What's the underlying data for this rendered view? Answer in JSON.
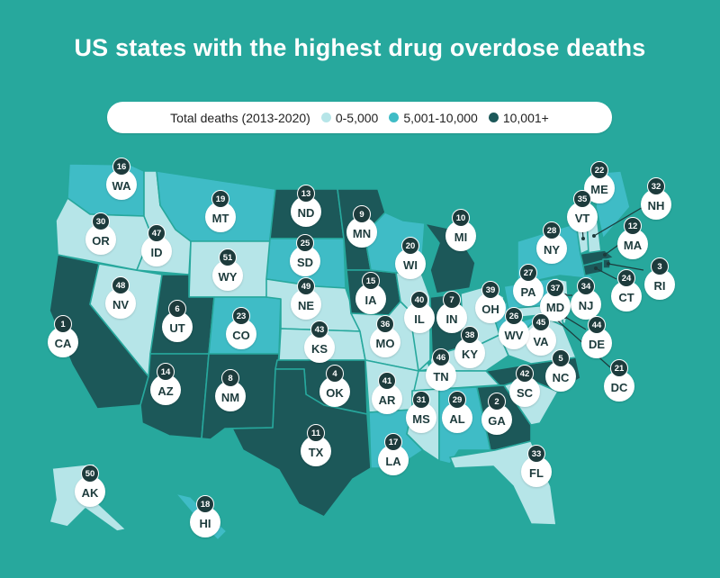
{
  "title": "US states with the highest drug overdose deaths",
  "legend": {
    "label": "Total deaths (2013-2020)",
    "items": [
      {
        "label": "0-5,000",
        "color": "#b6e5e8"
      },
      {
        "label": "5,001-10,000",
        "color": "#3fbcc6"
      },
      {
        "label": "10,001+",
        "color": "#1c5859"
      }
    ]
  },
  "colors": {
    "background": "#27a89d",
    "low": "#b6e5e8",
    "mid": "#3fbcc6",
    "high": "#1c5859",
    "rank_badge": "#1d3b3c"
  },
  "states": [
    {
      "abbr": "WA",
      "rank": "16",
      "category": "mid"
    },
    {
      "abbr": "OR",
      "rank": "30",
      "category": "low"
    },
    {
      "abbr": "CA",
      "rank": "1",
      "category": "high"
    },
    {
      "abbr": "NV",
      "rank": "48",
      "category": "low"
    },
    {
      "abbr": "ID",
      "rank": "47",
      "category": "low"
    },
    {
      "abbr": "MT",
      "rank": "19",
      "category": "mid"
    },
    {
      "abbr": "WY",
      "rank": "51",
      "category": "low"
    },
    {
      "abbr": "UT",
      "rank": "6",
      "category": "high"
    },
    {
      "abbr": "AZ",
      "rank": "14",
      "category": "high"
    },
    {
      "abbr": "CO",
      "rank": "23",
      "category": "mid"
    },
    {
      "abbr": "NM",
      "rank": "8",
      "category": "high"
    },
    {
      "abbr": "ND",
      "rank": "13",
      "category": "high"
    },
    {
      "abbr": "SD",
      "rank": "25",
      "category": "mid"
    },
    {
      "abbr": "NE",
      "rank": "49",
      "category": "low"
    },
    {
      "abbr": "KS",
      "rank": "43",
      "category": "low"
    },
    {
      "abbr": "OK",
      "rank": "4",
      "category": "high"
    },
    {
      "abbr": "TX",
      "rank": "11",
      "category": "high"
    },
    {
      "abbr": "MN",
      "rank": "9",
      "category": "high"
    },
    {
      "abbr": "IA",
      "rank": "15",
      "category": "high"
    },
    {
      "abbr": "MO",
      "rank": "36",
      "category": "low"
    },
    {
      "abbr": "AR",
      "rank": "41",
      "category": "low"
    },
    {
      "abbr": "LA",
      "rank": "17",
      "category": "mid"
    },
    {
      "abbr": "WI",
      "rank": "20",
      "category": "mid"
    },
    {
      "abbr": "IL",
      "rank": "40",
      "category": "low"
    },
    {
      "abbr": "MI",
      "rank": "10",
      "category": "high"
    },
    {
      "abbr": "IN",
      "rank": "7",
      "category": "high"
    },
    {
      "abbr": "OH",
      "rank": "39",
      "category": "low"
    },
    {
      "abbr": "KY",
      "rank": "38",
      "category": "low"
    },
    {
      "abbr": "TN",
      "rank": "46",
      "category": "low"
    },
    {
      "abbr": "MS",
      "rank": "31",
      "category": "low"
    },
    {
      "abbr": "AL",
      "rank": "29",
      "category": "mid"
    },
    {
      "abbr": "GA",
      "rank": "2",
      "category": "high"
    },
    {
      "abbr": "FL",
      "rank": "33",
      "category": "low"
    },
    {
      "abbr": "SC",
      "rank": "42",
      "category": "low"
    },
    {
      "abbr": "NC",
      "rank": "5",
      "category": "high"
    },
    {
      "abbr": "VA",
      "rank": "45",
      "category": "low"
    },
    {
      "abbr": "WV",
      "rank": "26",
      "category": "mid"
    },
    {
      "abbr": "PA",
      "rank": "27",
      "category": "mid"
    },
    {
      "abbr": "NY",
      "rank": "28",
      "category": "mid"
    },
    {
      "abbr": "VT",
      "rank": "35",
      "category": "low"
    },
    {
      "abbr": "NH",
      "rank": "32",
      "category": "low"
    },
    {
      "abbr": "ME",
      "rank": "22",
      "category": "mid"
    },
    {
      "abbr": "MA",
      "rank": "12",
      "category": "high"
    },
    {
      "abbr": "RI",
      "rank": "3",
      "category": "high"
    },
    {
      "abbr": "CT",
      "rank": "24",
      "category": "high"
    },
    {
      "abbr": "NJ",
      "rank": "34",
      "category": "low"
    },
    {
      "abbr": "DE",
      "rank": "44",
      "category": "low"
    },
    {
      "abbr": "MD",
      "rank": "37",
      "category": "low"
    },
    {
      "abbr": "DC",
      "rank": "21",
      "category": "high"
    },
    {
      "abbr": "AK",
      "rank": "50",
      "category": "low"
    },
    {
      "abbr": "HI",
      "rank": "18",
      "category": "mid"
    }
  ]
}
